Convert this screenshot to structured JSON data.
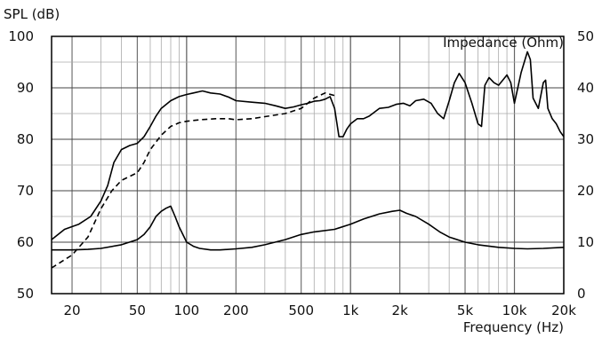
{
  "chart_data": {
    "type": "line",
    "ylabel": "SPL (dB)",
    "y2label": "Impedance (Ohm)",
    "xlabel": "Frequency  (Hz)",
    "x_scale": "log",
    "xlim": [
      15,
      20000
    ],
    "ylim": [
      50,
      100
    ],
    "y2lim": [
      0,
      50
    ],
    "grid": true,
    "x_ticks": [
      {
        "value": 20,
        "label": "20"
      },
      {
        "value": 50,
        "label": "50"
      },
      {
        "value": 100,
        "label": "100"
      },
      {
        "value": 200,
        "label": "200"
      },
      {
        "value": 500,
        "label": "500"
      },
      {
        "value": 1000,
        "label": "1k"
      },
      {
        "value": 2000,
        "label": "2k"
      },
      {
        "value": 5000,
        "label": "5k"
      },
      {
        "value": 10000,
        "label": "10k"
      },
      {
        "value": 20000,
        "label": "20k"
      }
    ],
    "y_ticks": [
      "50",
      "60",
      "70",
      "80",
      "90",
      "100"
    ],
    "y2_ticks": [
      "0",
      "10",
      "20",
      "30",
      "40",
      "50"
    ],
    "series": [
      {
        "style": "solid",
        "axis": "left",
        "x": [
          15,
          18,
          22,
          26,
          30,
          33,
          36,
          40,
          45,
          50,
          55,
          60,
          65,
          70,
          80,
          90,
          100,
          110,
          125,
          140,
          160,
          180,
          200,
          250,
          300,
          350,
          400,
          450,
          500,
          550,
          600,
          650,
          700,
          750,
          800,
          850,
          900,
          950,
          1000,
          1100,
          1200,
          1300,
          1500,
          1700,
          1900,
          2100,
          2300,
          2500,
          2800,
          3100,
          3400,
          3700,
          4000,
          4300,
          4600,
          5000,
          5500,
          6000,
          6300,
          6600,
          7000,
          7500,
          8000,
          8500,
          9000,
          9500,
          10000,
          11000,
          12000,
          12500,
          13000,
          14000,
          15000,
          15500,
          16000,
          17000,
          18000,
          19000,
          20000
        ],
        "y": [
          60.5,
          62.5,
          63.5,
          65.0,
          68.0,
          71.0,
          75.5,
          78.0,
          78.8,
          79.2,
          80.5,
          82.5,
          84.5,
          86.0,
          87.5,
          88.3,
          88.7,
          89.0,
          89.4,
          89.0,
          88.8,
          88.2,
          87.5,
          87.2,
          87.0,
          86.5,
          86.0,
          86.3,
          86.7,
          87.0,
          87.4,
          87.5,
          87.8,
          88.3,
          86.0,
          80.5,
          80.5,
          82.0,
          83.0,
          84.0,
          84.0,
          84.5,
          86.0,
          86.2,
          86.8,
          87.0,
          86.5,
          87.5,
          87.8,
          87.0,
          85.0,
          84.0,
          87.5,
          91.0,
          92.8,
          91.0,
          87.0,
          83.0,
          82.5,
          90.5,
          92.0,
          91.0,
          90.5,
          91.5,
          92.5,
          91.0,
          87.0,
          93.0,
          97.0,
          95.5,
          88.0,
          86.0,
          91.0,
          91.5,
          86.0,
          84.0,
          83.0,
          81.5,
          80.5
        ]
      },
      {
        "style": "dashed",
        "axis": "left",
        "x": [
          15,
          20,
          25,
          30,
          35,
          40,
          45,
          50,
          55,
          60,
          70,
          80,
          90,
          100,
          120,
          150,
          180,
          200,
          250,
          300,
          400,
          500,
          600,
          700,
          800
        ],
        "y": [
          55.0,
          57.5,
          61.0,
          66.5,
          70.0,
          72.0,
          72.8,
          73.5,
          75.5,
          78.0,
          80.8,
          82.5,
          83.2,
          83.5,
          83.8,
          84.0,
          84.0,
          83.8,
          84.0,
          84.4,
          85.0,
          86.0,
          88.0,
          89.0,
          88.5
        ]
      },
      {
        "style": "solid",
        "axis": "right",
        "x": [
          15,
          20,
          25,
          30,
          40,
          50,
          55,
          60,
          65,
          70,
          75,
          80,
          85,
          90,
          100,
          110,
          120,
          140,
          160,
          200,
          250,
          300,
          400,
          500,
          600,
          800,
          1000,
          1200,
          1500,
          1800,
          2000,
          2200,
          2500,
          3000,
          3500,
          4000,
          5000,
          6000,
          8000,
          10000,
          12000,
          15000,
          20000
        ],
        "y": [
          8.5,
          8.5,
          8.6,
          8.8,
          9.5,
          10.5,
          11.5,
          13.0,
          15.0,
          16.0,
          16.6,
          17.0,
          15.0,
          13.0,
          10.0,
          9.2,
          8.8,
          8.5,
          8.5,
          8.7,
          9.0,
          9.5,
          10.5,
          11.5,
          12.0,
          12.5,
          13.5,
          14.5,
          15.5,
          16.0,
          16.2,
          15.6,
          15.0,
          13.5,
          12.0,
          11.0,
          10.0,
          9.5,
          9.0,
          8.8,
          8.7,
          8.8,
          9.0
        ]
      }
    ]
  }
}
